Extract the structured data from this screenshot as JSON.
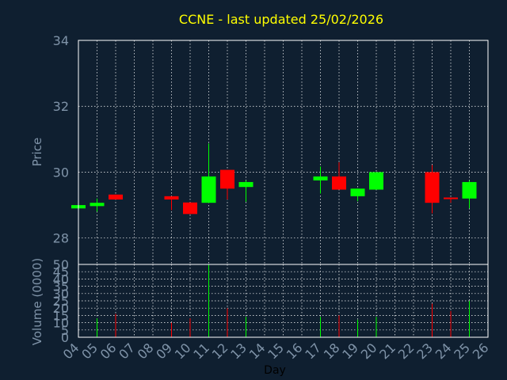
{
  "colors": {
    "background": "#0f1f30",
    "title": "#ffff00",
    "axis_text": "#7f93a8",
    "frame": "#ffffff",
    "up": "#00ff00",
    "down": "#ff0000"
  },
  "chart_data": [
    {
      "type": "candlestick",
      "title": "CCNE - last updated 25/02/2026",
      "xlabel": "",
      "ylabel": "Price",
      "ylim": [
        27.2,
        34
      ],
      "yticks": [
        28,
        30,
        32,
        34
      ],
      "grid": true,
      "x_domain": [
        4,
        26
      ],
      "candles": [
        {
          "day": 4,
          "open": 28.9,
          "close": 29.0,
          "high": 29.0,
          "low": 28.9
        },
        {
          "day": 5,
          "open": 28.97,
          "close": 29.07,
          "high": 29.2,
          "low": 28.8
        },
        {
          "day": 6,
          "open": 29.32,
          "close": 29.17,
          "high": 29.32,
          "low": 29.17
        },
        {
          "day": 9,
          "open": 29.27,
          "close": 29.17,
          "high": 29.27,
          "low": 28.85
        },
        {
          "day": 10,
          "open": 29.08,
          "close": 28.73,
          "high": 29.08,
          "low": 28.73
        },
        {
          "day": 11,
          "open": 29.07,
          "close": 29.87,
          "high": 30.87,
          "low": 29.07
        },
        {
          "day": 12,
          "open": 30.07,
          "close": 29.5,
          "high": 30.07,
          "low": 29.17
        },
        {
          "day": 13,
          "open": 29.55,
          "close": 29.7,
          "high": 29.75,
          "low": 29.1
        },
        {
          "day": 17,
          "open": 29.75,
          "close": 29.87,
          "high": 30.17,
          "low": 29.35
        },
        {
          "day": 18,
          "open": 29.87,
          "close": 29.47,
          "high": 30.3,
          "low": 29.47
        },
        {
          "day": 19,
          "open": 29.27,
          "close": 29.5,
          "high": 29.5,
          "low": 29.12
        },
        {
          "day": 20,
          "open": 29.47,
          "close": 30.0,
          "high": 30.0,
          "low": 29.47
        },
        {
          "day": 23,
          "open": 30.0,
          "close": 29.07,
          "high": 30.22,
          "low": 28.75
        },
        {
          "day": 24,
          "open": 29.23,
          "close": 29.2,
          "high": 29.23,
          "low": 29.07
        },
        {
          "day": 25,
          "open": 29.2,
          "close": 29.7,
          "high": 29.75,
          "low": 28.9
        }
      ]
    },
    {
      "type": "bar",
      "title": "",
      "xlabel": "Day",
      "ylabel": "Volume (0000)",
      "ylim": [
        0,
        50
      ],
      "yticks": [
        0,
        5,
        10,
        15,
        20,
        25,
        30,
        35,
        40,
        45,
        50
      ],
      "grid": true,
      "x_domain": [
        4,
        26
      ],
      "xticks": [
        "04",
        "05",
        "06",
        "07",
        "08",
        "09",
        "10",
        "11",
        "12",
        "13",
        "14",
        "15",
        "16",
        "17",
        "18",
        "19",
        "20",
        "21",
        "22",
        "23",
        "24",
        "25",
        "26"
      ],
      "bars": [
        {
          "day": 5,
          "value": 13,
          "direction": "up"
        },
        {
          "day": 6,
          "value": 16,
          "direction": "down"
        },
        {
          "day": 9,
          "value": 10,
          "direction": "down"
        },
        {
          "day": 10,
          "value": 13,
          "direction": "down"
        },
        {
          "day": 11,
          "value": 50,
          "direction": "up"
        },
        {
          "day": 12,
          "value": 20,
          "direction": "down"
        },
        {
          "day": 13,
          "value": 14,
          "direction": "up"
        },
        {
          "day": 17,
          "value": 14,
          "direction": "up"
        },
        {
          "day": 18,
          "value": 15,
          "direction": "down"
        },
        {
          "day": 19,
          "value": 12,
          "direction": "up"
        },
        {
          "day": 20,
          "value": 14,
          "direction": "up"
        },
        {
          "day": 23,
          "value": 23,
          "direction": "down"
        },
        {
          "day": 24,
          "value": 18,
          "direction": "down"
        },
        {
          "day": 25,
          "value": 25,
          "direction": "up"
        }
      ]
    }
  ]
}
